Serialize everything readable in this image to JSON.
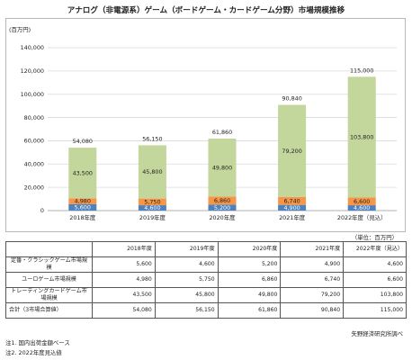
{
  "title": "アナログ（非電源系）ゲーム（ボードゲーム・カードゲーム分野）市場規模推移",
  "unit_note": "（単位：百万円）",
  "source": "矢野経済研究所調べ",
  "notes": [
    "注1. 国内出荷金額ベース",
    "注2. 2022年度見込値"
  ],
  "colors": {
    "classic": "#4f81bd",
    "eurogame": "#f79646",
    "trading": "#c3d69b",
    "grid": "#d9d9d9",
    "axis": "#999999"
  },
  "chart_data": {
    "type": "bar",
    "stacked": true,
    "title": "",
    "ylabel": "(百万円)",
    "ylim": [
      0,
      140000
    ],
    "yticks": [
      "0",
      "20,000",
      "40,000",
      "60,000",
      "80,000",
      "100,000",
      "120,000",
      "140,000"
    ],
    "ytick_values": [
      0,
      20000,
      40000,
      60000,
      80000,
      100000,
      120000,
      140000
    ],
    "grid": true,
    "categories": [
      "2018年度",
      "2019年度",
      "2020年度",
      "2021年度",
      "2022年度（見込）"
    ],
    "series": [
      {
        "key": "classic",
        "values": [
          5600,
          4600,
          5200,
          4900,
          4600
        ],
        "labels": [
          "5,600",
          "4,600",
          "5,200",
          "4,900",
          "4,600"
        ]
      },
      {
        "key": "eurogame",
        "values": [
          4980,
          5750,
          6860,
          6740,
          6600
        ],
        "labels": [
          "4,980",
          "5,750",
          "6,860",
          "6,740",
          "6,600"
        ]
      },
      {
        "key": "trading",
        "values": [
          43500,
          45800,
          49800,
          79200,
          103800
        ],
        "labels": [
          "43,500",
          "45,800",
          "49,800",
          "79,200",
          "103,800"
        ]
      }
    ],
    "totals": [
      54080,
      56150,
      61860,
      90840,
      115000
    ],
    "total_labels": [
      "54,080",
      "56,150",
      "61,860",
      "90,840",
      "115,000"
    ]
  },
  "table": {
    "headers": [
      "",
      "2018年度",
      "2019年度",
      "2020年度",
      "2021年度",
      "2022年度（見込）"
    ],
    "rows": [
      {
        "label": "定番・クラシックゲーム市場規模",
        "values": [
          "5,600",
          "4,600",
          "5,200",
          "4,900",
          "4,600"
        ]
      },
      {
        "label": "ユーロゲーム市場規模",
        "values": [
          "4,980",
          "5,750",
          "6,860",
          "6,740",
          "6,600"
        ]
      },
      {
        "label": "トレーディングカードゲーム市場規模",
        "values": [
          "43,500",
          "45,800",
          "49,800",
          "79,200",
          "103,800"
        ]
      },
      {
        "label": "合計（3市場合算値）",
        "values": [
          "54,080",
          "56,150",
          "61,860",
          "90,840",
          "115,000"
        ]
      }
    ]
  }
}
